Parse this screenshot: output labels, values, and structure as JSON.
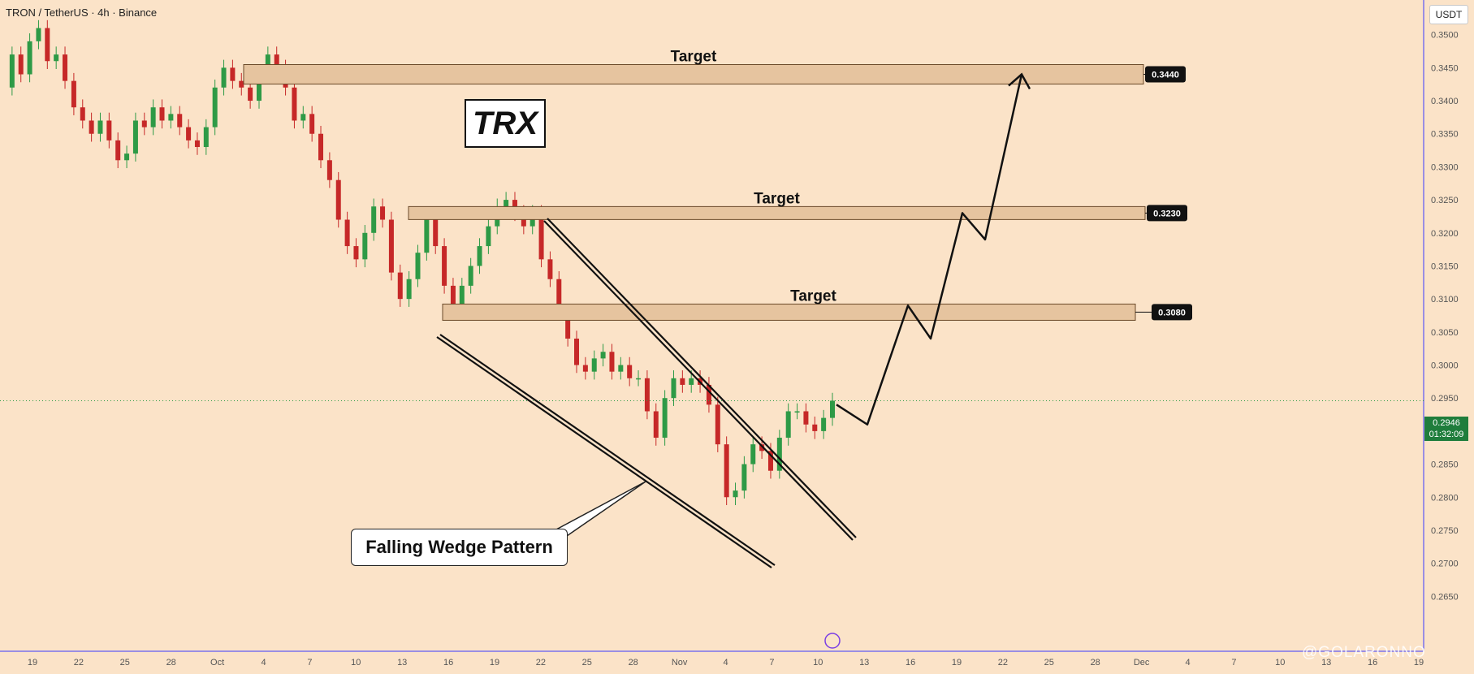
{
  "header": {
    "symbol": "TRON / TetherUS · 4h · Binance"
  },
  "unit": "USDT",
  "watermark": "@GOLARONNO",
  "chart_data": {
    "type": "candlestick",
    "y_ticks": [
      "0.3500",
      "0.3450",
      "0.3400",
      "0.3350",
      "0.3300",
      "0.3250",
      "0.3200",
      "0.3150",
      "0.3100",
      "0.3050",
      "0.3000",
      "0.2950",
      "0.2900",
      "0.2850",
      "0.2800",
      "0.2750",
      "0.2700",
      "0.2650"
    ],
    "ylim": [
      0.262,
      0.3535
    ],
    "x_ticks": [
      "19",
      "22",
      "25",
      "28",
      "Oct",
      "4",
      "7",
      "10",
      "13",
      "16",
      "19",
      "22",
      "25",
      "28",
      "Nov",
      "4",
      "7",
      "10",
      "13",
      "16",
      "19",
      "22",
      "25",
      "28",
      "Dec",
      "4",
      "7",
      "10",
      "13",
      "16",
      "19"
    ],
    "last_price": {
      "value": "0.2946",
      "timer": "01:32:09"
    },
    "price_path": [
      0.342,
      0.347,
      0.344,
      0.349,
      0.351,
      0.346,
      0.347,
      0.343,
      0.339,
      0.337,
      0.335,
      0.337,
      0.334,
      0.331,
      0.332,
      0.337,
      0.336,
      0.339,
      0.337,
      0.338,
      0.336,
      0.334,
      0.333,
      0.336,
      0.342,
      0.345,
      0.343,
      0.342,
      0.34,
      0.344,
      0.347,
      0.345,
      0.342,
      0.337,
      0.338,
      0.335,
      0.331,
      0.328,
      0.322,
      0.318,
      0.316,
      0.32,
      0.324,
      0.322,
      0.314,
      0.31,
      0.313,
      0.317,
      0.322,
      0.318,
      0.312,
      0.308,
      0.312,
      0.315,
      0.318,
      0.321,
      0.324,
      0.325,
      0.323,
      0.321,
      0.323,
      0.316,
      0.313,
      0.308,
      0.304,
      0.3,
      0.299,
      0.301,
      0.302,
      0.299,
      0.3,
      0.298,
      0.298,
      0.293,
      0.289,
      0.295,
      0.298,
      0.297,
      0.298,
      0.297,
      0.294,
      0.288,
      0.28,
      0.281,
      0.285,
      0.288,
      0.287,
      0.284,
      0.289,
      0.293,
      0.293,
      0.291,
      0.29,
      0.292,
      0.2946
    ],
    "zones": [
      {
        "label": "Target",
        "price": "0.3440"
      },
      {
        "label": "Target",
        "price": "0.3230"
      },
      {
        "label": "Target",
        "price": "0.3080"
      }
    ],
    "symbol_label": "TRX",
    "pattern_label": "Falling Wedge Pattern",
    "projection": [
      [
        0.294,
        0.291,
        0.309,
        0.304,
        0.323,
        0.319,
        0.344
      ]
    ]
  },
  "colors": {
    "background": "#fbe3c8",
    "up": "#2e9a46",
    "down": "#c62828",
    "zone_fill": "#e6c49f",
    "zone_border": "#6b4a2a",
    "axis_line": "#3a3aff",
    "price_tag": "#1f7d3c"
  }
}
